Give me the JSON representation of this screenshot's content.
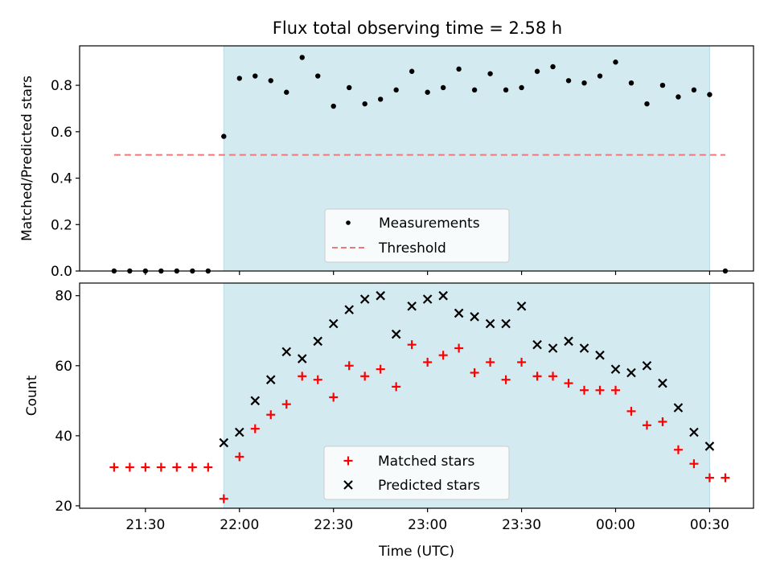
{
  "figure": {
    "title": "Flux total observing time = 2.58 h",
    "xlabel": "Time (UTC)"
  },
  "chart_data": [
    {
      "type": "scatter",
      "panel": "top",
      "title": "Flux total observing time = 2.58 h",
      "xlabel": "",
      "ylabel": "Matched/Predicted stars",
      "ylim": [
        0,
        0.97
      ],
      "yticks": [
        0.0,
        0.2,
        0.4,
        0.6,
        0.8
      ],
      "ytick_labels": [
        "0.0",
        "0.2",
        "0.4",
        "0.6",
        "0.8"
      ],
      "shaded_span": [
        "21:55",
        "00:30"
      ],
      "shaded_color": "#d4eaf1",
      "legend": {
        "placement": "lower-center"
      },
      "x": [
        "21:20",
        "21:25",
        "21:30",
        "21:35",
        "21:40",
        "21:45",
        "21:50",
        "21:55",
        "22:00",
        "22:05",
        "22:10",
        "22:15",
        "22:20",
        "22:25",
        "22:30",
        "22:35",
        "22:40",
        "22:45",
        "22:50",
        "22:55",
        "23:00",
        "23:05",
        "23:10",
        "23:15",
        "23:20",
        "23:25",
        "23:30",
        "23:35",
        "23:40",
        "23:45",
        "23:50",
        "23:55",
        "00:00",
        "00:05",
        "00:10",
        "00:15",
        "00:20",
        "00:25",
        "00:30",
        "00:35"
      ],
      "series": [
        {
          "name": "Measurements",
          "marker": "dot",
          "color": "#000000",
          "values": [
            0,
            0,
            0,
            0,
            0,
            0,
            0,
            0.58,
            0.83,
            0.84,
            0.82,
            0.77,
            0.92,
            0.84,
            0.71,
            0.79,
            0.72,
            0.74,
            0.78,
            0.86,
            0.77,
            0.79,
            0.87,
            0.78,
            0.85,
            0.78,
            0.79,
            0.86,
            0.88,
            0.82,
            0.81,
            0.84,
            0.9,
            0.81,
            0.72,
            0.8,
            0.75,
            0.78,
            0.76,
            0
          ]
        },
        {
          "name": "Threshold",
          "marker": "dashed-line",
          "color": "#f07878",
          "x": [
            "21:20",
            "00:35"
          ],
          "values": [
            0.5,
            0.5
          ]
        }
      ]
    },
    {
      "type": "scatter",
      "panel": "bottom",
      "xlabel": "Time (UTC)",
      "ylabel": "Count",
      "ylim": [
        19.3,
        83.6
      ],
      "yticks": [
        20,
        40,
        60,
        80
      ],
      "ytick_labels": [
        "20",
        "40",
        "60",
        "80"
      ],
      "xticks": [
        "21:30",
        "22:00",
        "22:30",
        "23:00",
        "23:30",
        "00:00",
        "00:30"
      ],
      "xtick_labels": [
        "21:30",
        "22:00",
        "22:30",
        "23:00",
        "23:30",
        "00:00",
        "00:30"
      ],
      "shaded_span": [
        "21:55",
        "00:30"
      ],
      "shaded_color": "#d4eaf1",
      "legend": {
        "placement": "lower-center"
      },
      "series": [
        {
          "name": "Matched stars",
          "marker": "plus",
          "color": "#ff0000",
          "x": [
            "21:20",
            "21:25",
            "21:30",
            "21:35",
            "21:40",
            "21:45",
            "21:50",
            "21:55",
            "22:00",
            "22:05",
            "22:10",
            "22:15",
            "22:20",
            "22:25",
            "22:30",
            "22:35",
            "22:40",
            "22:45",
            "22:50",
            "22:55",
            "23:00",
            "23:05",
            "23:10",
            "23:15",
            "23:20",
            "23:25",
            "23:30",
            "23:35",
            "23:40",
            "23:45",
            "23:50",
            "23:55",
            "00:00",
            "00:05",
            "00:10",
            "00:15",
            "00:20",
            "00:25",
            "00:30",
            "00:35"
          ],
          "values": [
            31,
            31,
            31,
            31,
            31,
            31,
            31,
            22,
            34,
            42,
            46,
            49,
            57,
            56,
            51,
            60,
            57,
            59,
            54,
            66,
            61,
            63,
            65,
            58,
            61,
            56,
            61,
            57,
            57,
            55,
            53,
            53,
            53,
            47,
            43,
            44,
            36,
            32,
            28,
            28
          ]
        },
        {
          "name": "Predicted stars",
          "marker": "x",
          "color": "#000000",
          "x": [
            "21:55",
            "22:00",
            "22:05",
            "22:10",
            "22:15",
            "22:20",
            "22:25",
            "22:30",
            "22:35",
            "22:40",
            "22:45",
            "22:50",
            "22:55",
            "23:00",
            "23:05",
            "23:10",
            "23:15",
            "23:20",
            "23:25",
            "23:30",
            "23:35",
            "23:40",
            "23:45",
            "23:50",
            "23:55",
            "00:00",
            "00:05",
            "00:10",
            "00:15",
            "00:20",
            "00:25",
            "00:30"
          ],
          "values": [
            38,
            41,
            50,
            56,
            64,
            62,
            67,
            72,
            76,
            79,
            80,
            69,
            77,
            79,
            80,
            75,
            74,
            72,
            72,
            77,
            66,
            65,
            67,
            65,
            63,
            59,
            58,
            60,
            55,
            48,
            41,
            37
          ]
        }
      ]
    }
  ]
}
